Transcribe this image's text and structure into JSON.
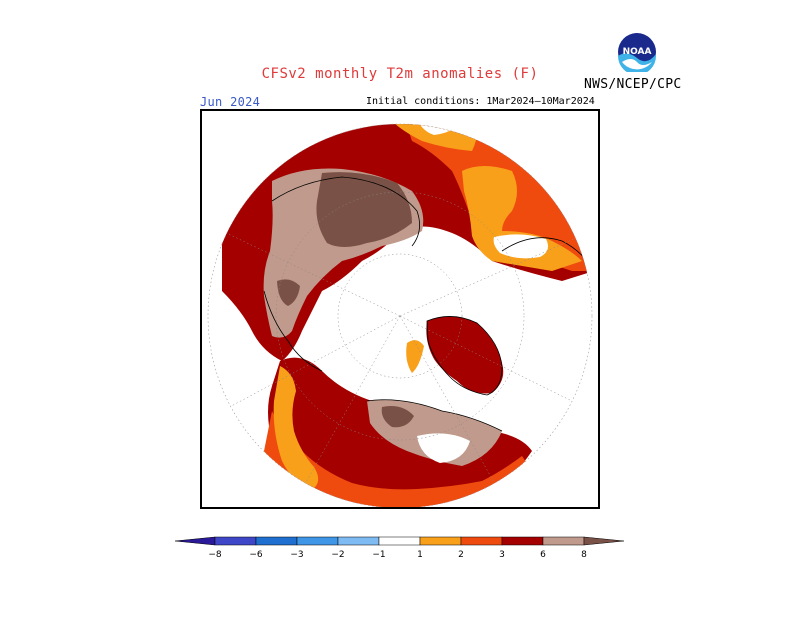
{
  "title": "CFSv2 monthly T2m anomalies (F)",
  "agency": "NWS/NCEP/CPC",
  "logo_text": "NOAA",
  "month": "Jun 2024",
  "initial_conditions": "Initial conditions: 1Mar2024–10Mar2024",
  "colors": {
    "title": "#e03a3a",
    "month": "#3a5ac8",
    "orange_1_2": "#f9a01b",
    "redorange_2_3": "#f04b0f",
    "darkred_3_6": "#a50000",
    "pinkbrown_6_8": "#c09a8c",
    "brown_8": "#7a5146"
  },
  "legend": {
    "levels": [
      "−8",
      "−6",
      "−3",
      "−2",
      "−1",
      "1",
      "2",
      "3",
      "6",
      "8"
    ],
    "bins": [
      {
        "range": "< -8",
        "color": "#2a1a9a"
      },
      {
        "range": "-8 to -6",
        "color": "#3d47c8"
      },
      {
        "range": "-6 to -3",
        "color": "#1f6fd0"
      },
      {
        "range": "-3 to -2",
        "color": "#3f95e6"
      },
      {
        "range": "-2 to -1",
        "color": "#7ebbf2"
      },
      {
        "range": "-1 to 1",
        "color": "#ffffff"
      },
      {
        "range": "1 to 2",
        "color": "#f9a01b"
      },
      {
        "range": "2 to 3",
        "color": "#f04b0f"
      },
      {
        "range": "3 to 6",
        "color": "#a50000"
      },
      {
        "range": "6 to 8",
        "color": "#c09a8c"
      },
      {
        "range": "> 8",
        "color": "#7a5146"
      }
    ]
  }
}
